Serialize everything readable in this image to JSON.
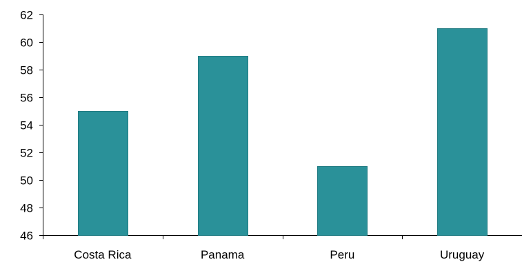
{
  "chart_data": {
    "type": "bar",
    "title": "",
    "xlabel": "",
    "ylabel": "",
    "categories": [
      "Costa Rica",
      "Panama",
      "Peru",
      "Uruguay"
    ],
    "values": [
      55,
      59,
      51,
      61
    ],
    "ylim": [
      46,
      62
    ],
    "yticks": [
      46,
      48,
      50,
      52,
      54,
      56,
      58,
      60,
      62
    ],
    "grid": false,
    "legend": "none",
    "bar_color": "#2A9199",
    "bar_edge_color": "#1F7A81"
  }
}
